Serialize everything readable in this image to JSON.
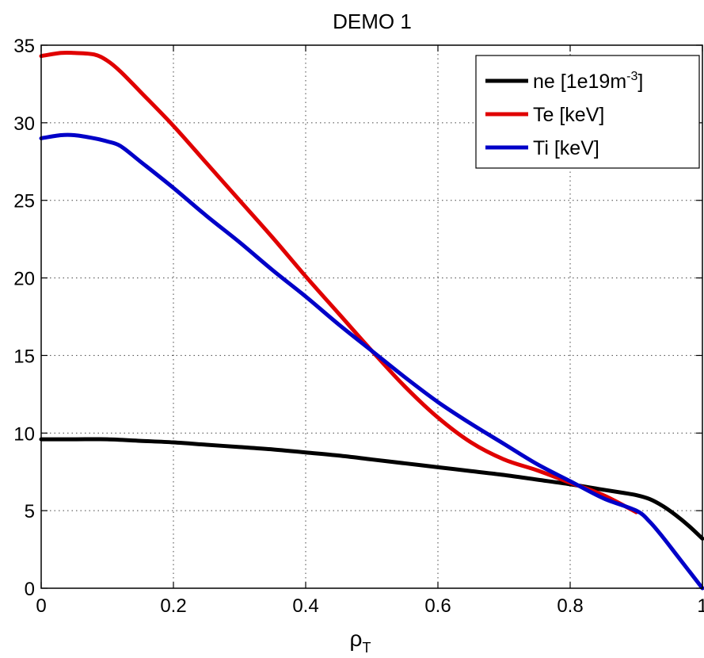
{
  "chart_data": {
    "type": "line",
    "title": "DEMO 1",
    "xlabel": "ρ",
    "xlabel_sub": "T",
    "ylabel": "",
    "xlim": [
      0,
      1
    ],
    "ylim": [
      0,
      35
    ],
    "x_ticks": [
      0,
      0.2,
      0.4,
      0.6,
      0.8,
      1
    ],
    "x_tick_labels": [
      "0",
      "0.2",
      "0.4",
      "0.6",
      "0.8",
      "1"
    ],
    "y_ticks": [
      0,
      5,
      10,
      15,
      20,
      25,
      30,
      35
    ],
    "y_tick_labels": [
      "0",
      "5",
      "10",
      "15",
      "20",
      "25",
      "30",
      "35"
    ],
    "grid": true,
    "legend_position": "top-right",
    "series": [
      {
        "name": "ne [1e19m",
        "name_sup": "-3",
        "name_suffix": "]",
        "color": "#000000",
        "x": [
          0,
          0.05,
          0.1,
          0.15,
          0.2,
          0.25,
          0.3,
          0.35,
          0.4,
          0.45,
          0.5,
          0.55,
          0.6,
          0.65,
          0.7,
          0.75,
          0.8,
          0.85,
          0.88,
          0.9,
          0.92,
          0.94,
          0.96,
          0.98,
          1.0
        ],
        "y": [
          9.6,
          9.6,
          9.6,
          9.5,
          9.4,
          9.25,
          9.1,
          8.95,
          8.75,
          8.55,
          8.3,
          8.05,
          7.8,
          7.55,
          7.3,
          7.0,
          6.7,
          6.35,
          6.15,
          6.0,
          5.75,
          5.3,
          4.7,
          4.0,
          3.2
        ]
      },
      {
        "name": "Te [keV]",
        "color": "#e00000",
        "x": [
          0,
          0.03,
          0.05,
          0.08,
          0.1,
          0.12,
          0.15,
          0.2,
          0.25,
          0.3,
          0.35,
          0.4,
          0.45,
          0.5,
          0.55,
          0.6,
          0.65,
          0.7,
          0.75,
          0.8,
          0.85,
          0.9
        ],
        "y": [
          34.3,
          34.5,
          34.5,
          34.4,
          34.0,
          33.3,
          32.0,
          29.8,
          27.4,
          25.0,
          22.6,
          20.1,
          17.7,
          15.3,
          13.0,
          11.0,
          9.4,
          8.3,
          7.6,
          6.8,
          6.0,
          4.9
        ]
      },
      {
        "name": "Ti [keV]",
        "color": "#0000c8",
        "x": [
          0,
          0.03,
          0.05,
          0.08,
          0.1,
          0.12,
          0.15,
          0.2,
          0.25,
          0.3,
          0.35,
          0.4,
          0.45,
          0.5,
          0.55,
          0.6,
          0.65,
          0.7,
          0.75,
          0.8,
          0.85,
          0.9,
          0.92,
          0.94,
          0.96,
          0.98,
          1.0
        ],
        "y": [
          29.0,
          29.2,
          29.2,
          29.0,
          28.8,
          28.5,
          27.5,
          25.8,
          24.0,
          22.3,
          20.5,
          18.8,
          17.0,
          15.3,
          13.6,
          12.0,
          10.6,
          9.3,
          8.0,
          6.9,
          5.8,
          5.0,
          4.3,
          3.3,
          2.2,
          1.1,
          0.0
        ]
      }
    ]
  }
}
